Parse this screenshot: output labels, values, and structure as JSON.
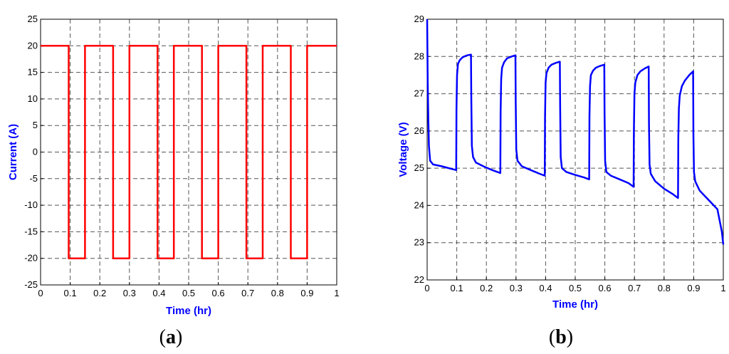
{
  "chart_data": [
    {
      "type": "line",
      "panel_label": "a",
      "xlabel": "Time (hr)",
      "ylabel": "Current (A)",
      "xlim": [
        0,
        1
      ],
      "ylim": [
        -25,
        25
      ],
      "xticks": [
        0,
        0.1,
        0.2,
        0.3,
        0.4,
        0.5,
        0.6,
        0.7,
        0.8,
        0.9,
        1
      ],
      "xtick_labels": [
        "0",
        "0.1",
        "0.2",
        "0.3",
        "0.4",
        "0.5",
        "0.6",
        "0.7",
        "0.8",
        "0.9",
        "1"
      ],
      "yticks": [
        -25,
        -20,
        -15,
        -10,
        -5,
        0,
        5,
        10,
        15,
        20,
        25
      ],
      "ytick_labels": [
        "-25",
        "-20",
        "-15",
        "-10",
        "-5",
        "0",
        "5",
        "10",
        "15",
        "20",
        "25"
      ],
      "grid": true,
      "line_color": "#ff0000",
      "series": [
        {
          "x": [
            0,
            0.095,
            0.095,
            0.15,
            0.15,
            0.245,
            0.245,
            0.3,
            0.3,
            0.395,
            0.395,
            0.45,
            0.45,
            0.545,
            0.545,
            0.6,
            0.6,
            0.695,
            0.695,
            0.75,
            0.75,
            0.845,
            0.845,
            0.9,
            0.9,
            1.0
          ],
          "y": [
            20,
            20,
            -20,
            -20,
            20,
            20,
            -20,
            -20,
            20,
            20,
            -20,
            -20,
            20,
            20,
            -20,
            -20,
            20,
            20,
            -20,
            -20,
            20,
            20,
            -20,
            -20,
            20,
            20
          ]
        }
      ]
    },
    {
      "type": "line",
      "panel_label": "b",
      "xlabel": "Time (hr)",
      "ylabel": "Voltage (V)",
      "xlim": [
        0,
        1
      ],
      "ylim": [
        22,
        29
      ],
      "xticks": [
        0,
        0.1,
        0.2,
        0.3,
        0.4,
        0.5,
        0.6,
        0.7,
        0.8,
        0.9,
        1
      ],
      "xtick_labels": [
        "0",
        "0.1",
        "0.2",
        "0.3",
        "0.4",
        "0.5",
        "0.6",
        "0.7",
        "0.8",
        "0.9",
        "1"
      ],
      "yticks": [
        22,
        23,
        24,
        25,
        26,
        27,
        28,
        29
      ],
      "ytick_labels": [
        "22",
        "23",
        "24",
        "25",
        "26",
        "27",
        "28",
        "29"
      ],
      "grid": true,
      "line_color": "#0000ff",
      "series": [
        {
          "x": [
            0,
            0.002,
            0.004,
            0.006,
            0.01,
            0.02,
            0.05,
            0.098,
            0.099,
            0.101,
            0.104,
            0.11,
            0.12,
            0.135,
            0.148,
            0.149,
            0.151,
            0.155,
            0.165,
            0.19,
            0.22,
            0.247,
            0.248,
            0.25,
            0.253,
            0.26,
            0.27,
            0.285,
            0.298,
            0.299,
            0.301,
            0.305,
            0.32,
            0.35,
            0.38,
            0.397,
            0.398,
            0.4,
            0.403,
            0.41,
            0.42,
            0.435,
            0.448,
            0.449,
            0.451,
            0.455,
            0.47,
            0.5,
            0.53,
            0.547,
            0.548,
            0.55,
            0.553,
            0.56,
            0.57,
            0.585,
            0.598,
            0.599,
            0.601,
            0.605,
            0.62,
            0.65,
            0.68,
            0.697,
            0.698,
            0.7,
            0.703,
            0.71,
            0.72,
            0.735,
            0.748,
            0.749,
            0.751,
            0.755,
            0.77,
            0.8,
            0.83,
            0.847,
            0.848,
            0.85,
            0.853,
            0.86,
            0.87,
            0.885,
            0.898,
            0.899,
            0.901,
            0.905,
            0.92,
            0.95,
            0.98,
            0.995,
            1.0
          ],
          "y": [
            29.0,
            27.3,
            26.3,
            25.6,
            25.2,
            25.1,
            25.05,
            24.95,
            26.6,
            27.5,
            27.8,
            27.9,
            27.98,
            28.03,
            28.05,
            26.9,
            25.6,
            25.3,
            25.15,
            25.05,
            24.95,
            24.87,
            26.5,
            27.4,
            27.7,
            27.85,
            27.95,
            28.0,
            28.03,
            26.8,
            25.5,
            25.2,
            25.05,
            24.95,
            24.85,
            24.8,
            26.4,
            27.3,
            27.55,
            27.7,
            27.78,
            27.83,
            27.86,
            26.7,
            25.3,
            25.0,
            24.9,
            24.82,
            24.75,
            24.7,
            26.4,
            27.2,
            27.5,
            27.62,
            27.7,
            27.75,
            27.78,
            26.5,
            25.2,
            24.9,
            24.8,
            24.7,
            24.6,
            24.5,
            26.0,
            27.0,
            27.3,
            27.5,
            27.6,
            27.68,
            27.73,
            26.2,
            25.1,
            24.85,
            24.65,
            24.45,
            24.3,
            24.2,
            25.8,
            26.6,
            26.95,
            27.2,
            27.35,
            27.5,
            27.6,
            25.9,
            24.9,
            24.65,
            24.4,
            24.15,
            23.9,
            23.3,
            22.95
          ]
        }
      ]
    }
  ]
}
